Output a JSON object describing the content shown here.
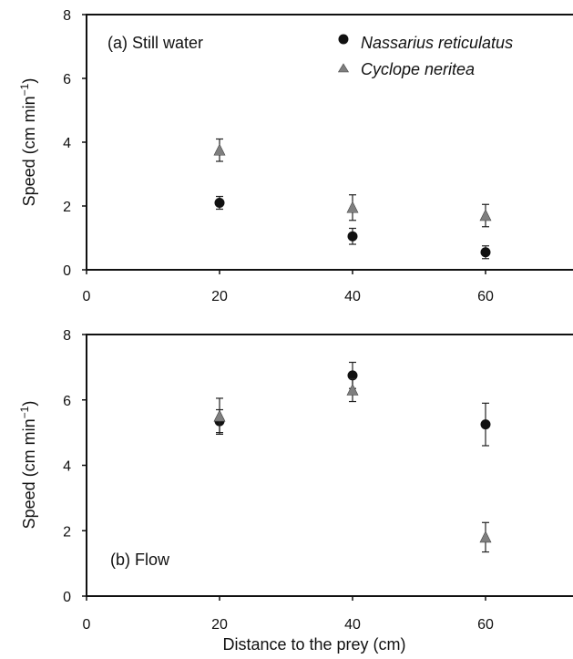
{
  "chart_data": [
    {
      "type": "scatter",
      "panel_label": "(a) Still water",
      "xlabel": "",
      "ylabel": "Speed (cm min",
      "ylabel_sup": "−1",
      "ylabel_close": ")",
      "xlim": [
        0,
        70
      ],
      "ylim": [
        0,
        8
      ],
      "x_ticks": [
        "0",
        "20",
        "40",
        "60"
      ],
      "y_ticks": [
        "0",
        "2",
        "4",
        "6",
        "8"
      ],
      "grid": false,
      "legend": "top-right",
      "series": [
        {
          "name": "Nassarius reticulatus",
          "marker": "circle",
          "color": "#111111",
          "x": [
            20,
            40,
            60
          ],
          "y": [
            2.1,
            1.05,
            0.55
          ],
          "err": [
            0.2,
            0.25,
            0.2
          ]
        },
        {
          "name": "Cyclope neritea",
          "marker": "triangle",
          "color": "#7f7f7f",
          "x": [
            20,
            40,
            60
          ],
          "y": [
            3.75,
            1.95,
            1.7
          ],
          "err": [
            0.35,
            0.4,
            0.35
          ]
        }
      ]
    },
    {
      "type": "scatter",
      "panel_label": "(b) Flow",
      "xlabel": "Distance to the prey (cm)",
      "ylabel": "Speed (cm min",
      "ylabel_sup": "−1",
      "ylabel_close": ")",
      "xlim": [
        0,
        70
      ],
      "ylim": [
        0,
        8
      ],
      "x_ticks": [
        "0",
        "20",
        "40",
        "60"
      ],
      "y_ticks": [
        "0",
        "2",
        "4",
        "6",
        "8"
      ],
      "grid": false,
      "series": [
        {
          "name": "Nassarius reticulatus",
          "marker": "circle",
          "color": "#111111",
          "x": [
            20,
            40,
            60
          ],
          "y": [
            5.35,
            6.75,
            5.25
          ],
          "err": [
            0.35,
            0.4,
            0.65
          ]
        },
        {
          "name": "Cyclope neritea",
          "marker": "triangle",
          "color": "#7f7f7f",
          "x": [
            20,
            40,
            60
          ],
          "y": [
            5.5,
            6.3,
            1.8
          ],
          "err": [
            0.55,
            0.35,
            0.45
          ]
        }
      ]
    }
  ]
}
